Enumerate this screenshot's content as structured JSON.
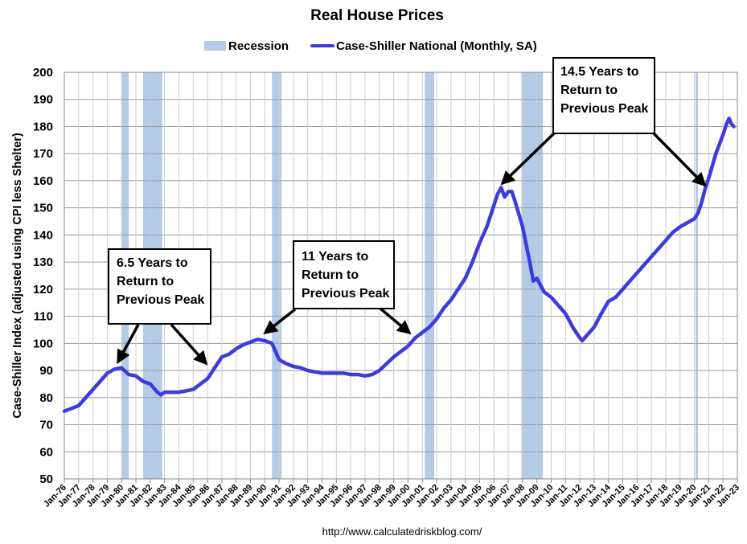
{
  "chart_data": {
    "type": "line",
    "title": "Real House Prices",
    "ylabel": "Case-Shiller Index (adjusted using CPI less Shelter)",
    "xlabel": "",
    "ylim": [
      50,
      200
    ],
    "yticks": [
      50,
      60,
      70,
      80,
      90,
      100,
      110,
      120,
      130,
      140,
      150,
      160,
      170,
      180,
      190,
      200
    ],
    "xlim": [
      "1976-01",
      "2023-01"
    ],
    "xtick_labels": [
      "Jan-76",
      "Jan-77",
      "Jan-78",
      "Jan-79",
      "Jan-80",
      "Jan-81",
      "Jan-82",
      "Jan-83",
      "Jan-84",
      "Jan-85",
      "Jan-86",
      "Jan-87",
      "Jan-88",
      "Jan-89",
      "Jan-90",
      "Jan-91",
      "Jan-92",
      "Jan-93",
      "Jan-94",
      "Jan-95",
      "Jan-96",
      "Jan-97",
      "Jan-98",
      "Jan-99",
      "Jan-00",
      "Jan-01",
      "Jan-02",
      "Jan-03",
      "Jan-04",
      "Jan-05",
      "Jan-06",
      "Jan-07",
      "Jan-08",
      "Jan-09",
      "Jan-10",
      "Jan-11",
      "Jan-12",
      "Jan-13",
      "Jan-14",
      "Jan-15",
      "Jan-16",
      "Jan-17",
      "Jan-18",
      "Jan-19",
      "Jan-20",
      "Jan-21",
      "Jan-22",
      "Jan-23"
    ],
    "grid": true,
    "legend_position": "top",
    "legend": [
      {
        "label": "Recession",
        "kind": "band",
        "color": "#b4cbe8"
      },
      {
        "label": "Case-Shiller National (Monthly, SA)",
        "kind": "line",
        "color": "#3c3cdc"
      }
    ],
    "recessions": [
      [
        "1980-01",
        "1980-07"
      ],
      [
        "1981-07",
        "1982-11"
      ],
      [
        "1990-07",
        "1991-03"
      ],
      [
        "2001-03",
        "2001-11"
      ],
      [
        "2007-12",
        "2009-06"
      ],
      [
        "2020-02",
        "2020-04"
      ]
    ],
    "series": [
      {
        "name": "Case-Shiller National (Monthly, SA)",
        "color": "#3c3cdc",
        "points": [
          [
            "1976-01",
            75
          ],
          [
            "1976-07",
            76
          ],
          [
            "1977-01",
            77
          ],
          [
            "1977-07",
            80
          ],
          [
            "1978-01",
            83
          ],
          [
            "1978-07",
            86
          ],
          [
            "1979-01",
            89
          ],
          [
            "1979-07",
            90.5
          ],
          [
            "1980-01",
            91
          ],
          [
            "1980-07",
            88.5
          ],
          [
            "1981-01",
            88
          ],
          [
            "1981-07",
            86
          ],
          [
            "1982-01",
            85
          ],
          [
            "1982-07",
            82
          ],
          [
            "1982-10",
            81
          ],
          [
            "1983-01",
            82
          ],
          [
            "1983-07",
            82
          ],
          [
            "1984-01",
            82
          ],
          [
            "1984-07",
            82.5
          ],
          [
            "1985-01",
            83
          ],
          [
            "1985-07",
            85
          ],
          [
            "1986-01",
            87
          ],
          [
            "1986-07",
            91
          ],
          [
            "1987-01",
            95
          ],
          [
            "1987-07",
            96
          ],
          [
            "1988-01",
            98
          ],
          [
            "1988-07",
            99.5
          ],
          [
            "1989-01",
            100.5
          ],
          [
            "1989-07",
            101.5
          ],
          [
            "1990-01",
            101
          ],
          [
            "1990-07",
            100
          ],
          [
            "1991-01",
            94
          ],
          [
            "1991-07",
            92.5
          ],
          [
            "1992-01",
            91.5
          ],
          [
            "1992-07",
            91
          ],
          [
            "1993-01",
            90
          ],
          [
            "1993-07",
            89.5
          ],
          [
            "1994-01",
            89
          ],
          [
            "1994-07",
            89
          ],
          [
            "1995-01",
            89
          ],
          [
            "1995-07",
            89
          ],
          [
            "1996-01",
            88.5
          ],
          [
            "1996-07",
            88.5
          ],
          [
            "1997-01",
            88
          ],
          [
            "1997-07",
            88.5
          ],
          [
            "1998-01",
            90
          ],
          [
            "1998-07",
            92.5
          ],
          [
            "1999-01",
            95
          ],
          [
            "1999-07",
            97
          ],
          [
            "2000-01",
            99
          ],
          [
            "2000-07",
            102
          ],
          [
            "2001-01",
            104
          ],
          [
            "2001-07",
            106
          ],
          [
            "2002-01",
            109
          ],
          [
            "2002-07",
            113
          ],
          [
            "2003-01",
            116
          ],
          [
            "2003-07",
            120
          ],
          [
            "2004-01",
            124
          ],
          [
            "2004-07",
            130
          ],
          [
            "2005-01",
            137
          ],
          [
            "2005-07",
            143
          ],
          [
            "2006-01",
            151
          ],
          [
            "2006-04",
            155
          ],
          [
            "2006-07",
            157.5
          ],
          [
            "2006-10",
            154
          ],
          [
            "2007-01",
            156
          ],
          [
            "2007-04",
            156
          ],
          [
            "2007-07",
            152
          ],
          [
            "2008-01",
            143
          ],
          [
            "2008-07",
            130
          ],
          [
            "2008-10",
            123
          ],
          [
            "2009-01",
            124
          ],
          [
            "2009-07",
            119
          ],
          [
            "2010-01",
            117
          ],
          [
            "2010-07",
            114
          ],
          [
            "2011-01",
            111
          ],
          [
            "2011-07",
            106
          ],
          [
            "2012-01",
            102
          ],
          [
            "2012-03",
            101
          ],
          [
            "2012-07",
            103
          ],
          [
            "2013-01",
            106
          ],
          [
            "2013-07",
            111
          ],
          [
            "2014-01",
            115.5
          ],
          [
            "2014-07",
            117
          ],
          [
            "2015-01",
            120
          ],
          [
            "2015-07",
            123
          ],
          [
            "2016-01",
            126
          ],
          [
            "2016-07",
            129
          ],
          [
            "2017-01",
            132
          ],
          [
            "2017-07",
            135
          ],
          [
            "2018-01",
            138
          ],
          [
            "2018-07",
            141
          ],
          [
            "2019-01",
            143
          ],
          [
            "2019-07",
            144.5
          ],
          [
            "2020-01",
            146
          ],
          [
            "2020-04",
            148
          ],
          [
            "2020-07",
            152
          ],
          [
            "2020-10",
            157
          ],
          [
            "2021-01",
            161
          ],
          [
            "2021-07",
            170
          ],
          [
            "2022-01",
            177
          ],
          [
            "2022-04",
            181
          ],
          [
            "2022-06",
            183
          ],
          [
            "2022-08",
            181
          ],
          [
            "2022-10",
            180
          ]
        ]
      }
    ],
    "annotations": [
      {
        "text": [
          "6.5 Years to",
          "Return to",
          "Previous Peak"
        ]
      },
      {
        "text": [
          "11 Years to",
          "Return to",
          "Previous Peak"
        ]
      },
      {
        "text": [
          "14.5 Years to",
          "Return to",
          "Previous Peak"
        ]
      }
    ],
    "source": "http://www.calculatedriskblog.com/"
  }
}
